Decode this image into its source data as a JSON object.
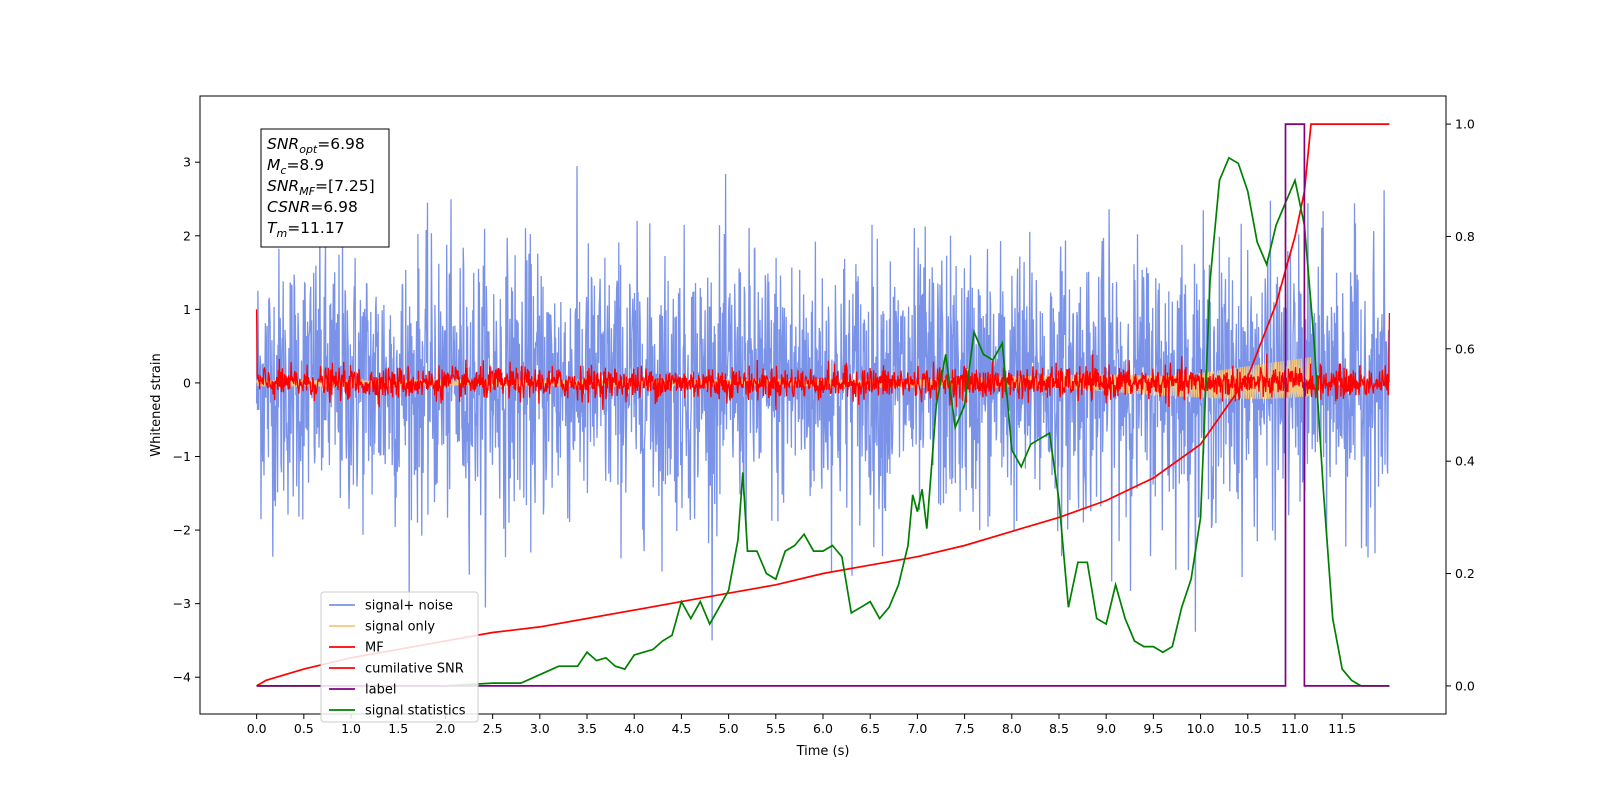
{
  "chart_data": {
    "type": "line",
    "xlabel": "Time (s)",
    "ylabel": "Whitened strain",
    "xlim": [
      -0.6,
      12.6
    ],
    "ylim": [
      -4.5,
      3.9
    ],
    "y2lim": [
      -0.05,
      1.05
    ],
    "x_ticks": [
      0.0,
      0.5,
      1.0,
      1.5,
      2.0,
      2.5,
      3.0,
      3.5,
      4.0,
      4.5,
      5.0,
      5.5,
      6.0,
      6.5,
      7.0,
      7.5,
      8.0,
      8.5,
      9.0,
      9.5,
      10.0,
      10.5,
      11.0,
      11.5
    ],
    "x_tick_labels": [
      "0.0",
      "0.5",
      "1.0",
      "1.5",
      "2.0",
      "2.5",
      "3.0",
      "3.5",
      "4.0",
      "4.5",
      "5.0",
      "5.5",
      "6.0",
      "6.5",
      "7.0",
      "7.5",
      "8.0",
      "8.5",
      "9.0",
      "9.5",
      "10.0",
      "10.5",
      "11.0",
      "11.5"
    ],
    "y_ticks": [
      -4,
      -3,
      -2,
      -1,
      0,
      1,
      2,
      3
    ],
    "y_tick_labels": [
      "−4",
      "−3",
      "−2",
      "−1",
      "0",
      "1",
      "2",
      "3"
    ],
    "y2_ticks": [
      0.0,
      0.2,
      0.4,
      0.6,
      0.8,
      1.0
    ],
    "y2_tick_labels": [
      "0.0",
      "0.2",
      "0.4",
      "0.6",
      "0.8",
      "1.0"
    ],
    "grid": false,
    "legend_placement": "lower-left",
    "annotation": [
      {
        "base": "SNR",
        "sub": "opt",
        "value": "=6.98"
      },
      {
        "base": "M",
        "sub": "c",
        "value": "=8.9"
      },
      {
        "base": "SNR",
        "sub": "MF",
        "value": "=[7.25]"
      },
      {
        "base": "CSNR",
        "sub": "",
        "value": "=6.98"
      },
      {
        "base": "T",
        "sub": "m",
        "value": "=11.17"
      }
    ],
    "series": [
      {
        "name": "signal+ noise",
        "color": "#7a93e8",
        "axis": "left",
        "kind": "noise",
        "x_range": [
          0,
          12.0
        ],
        "envelope": [
          -3.5,
          3.5
        ],
        "typical_std": 0.9
      },
      {
        "name": "signal only",
        "color": "#f5c77e",
        "axis": "left",
        "kind": "chirp",
        "x_range": [
          0,
          11.17
        ],
        "amplitude_start": 0.05,
        "amplitude_end": 0.35
      },
      {
        "name": "MF",
        "color": "#ff0000",
        "axis": "left",
        "kind": "noise",
        "x_range": [
          0,
          12.0
        ],
        "typical_std": 0.11
      },
      {
        "name": "cumilative SNR",
        "color": "#ff0000",
        "axis": "right",
        "x": [
          0,
          0.1,
          0.5,
          1,
          1.5,
          2,
          2.5,
          3,
          3.5,
          4,
          4.5,
          5,
          5.5,
          6,
          6.5,
          7,
          7.5,
          8,
          8.5,
          9,
          9.5,
          10,
          10.5,
          10.8,
          11,
          11.1,
          11.17,
          11.5,
          12.0
        ],
        "y": [
          0.0,
          0.01,
          0.03,
          0.05,
          0.065,
          0.08,
          0.095,
          0.105,
          0.12,
          0.135,
          0.15,
          0.165,
          0.18,
          0.2,
          0.215,
          0.23,
          0.25,
          0.275,
          0.3,
          0.33,
          0.37,
          0.43,
          0.55,
          0.68,
          0.8,
          0.88,
          1.0,
          1.0,
          1.0
        ]
      },
      {
        "name": "label",
        "color": "#800080",
        "axis": "right",
        "x": [
          0,
          10.9,
          10.9,
          11.1,
          11.1,
          12.0
        ],
        "y": [
          0,
          0,
          1,
          1,
          0,
          0
        ]
      },
      {
        "name": "signal statistics",
        "color": "#008000",
        "axis": "right",
        "x": [
          0,
          0.5,
          1,
          1.5,
          2,
          2.5,
          2.8,
          3,
          3.2,
          3.4,
          3.5,
          3.6,
          3.7,
          3.8,
          3.9,
          4.0,
          4.1,
          4.2,
          4.3,
          4.4,
          4.5,
          4.6,
          4.7,
          4.8,
          4.9,
          5.0,
          5.1,
          5.15,
          5.2,
          5.3,
          5.4,
          5.5,
          5.6,
          5.7,
          5.8,
          5.9,
          6.0,
          6.1,
          6.2,
          6.3,
          6.4,
          6.5,
          6.6,
          6.7,
          6.8,
          6.9,
          6.95,
          7.0,
          7.05,
          7.1,
          7.2,
          7.3,
          7.4,
          7.5,
          7.6,
          7.7,
          7.8,
          7.9,
          8.0,
          8.1,
          8.2,
          8.3,
          8.4,
          8.5,
          8.6,
          8.7,
          8.8,
          8.9,
          9.0,
          9.1,
          9.2,
          9.3,
          9.4,
          9.5,
          9.6,
          9.7,
          9.8,
          9.9,
          10.0,
          10.1,
          10.2,
          10.3,
          10.4,
          10.5,
          10.6,
          10.7,
          10.8,
          10.9,
          11.0,
          11.1,
          11.2,
          11.3,
          11.4,
          11.5,
          11.6,
          11.7,
          11.8,
          11.9,
          12.0
        ],
        "y": [
          0.0,
          0.0,
          0.0,
          0.0,
          0.0,
          0.005,
          0.005,
          0.02,
          0.035,
          0.035,
          0.06,
          0.045,
          0.05,
          0.035,
          0.03,
          0.055,
          0.06,
          0.065,
          0.08,
          0.09,
          0.15,
          0.12,
          0.15,
          0.11,
          0.14,
          0.17,
          0.26,
          0.38,
          0.24,
          0.24,
          0.2,
          0.19,
          0.24,
          0.25,
          0.27,
          0.24,
          0.24,
          0.25,
          0.23,
          0.13,
          0.14,
          0.15,
          0.12,
          0.14,
          0.18,
          0.25,
          0.34,
          0.31,
          0.35,
          0.28,
          0.5,
          0.59,
          0.46,
          0.5,
          0.63,
          0.59,
          0.58,
          0.61,
          0.42,
          0.39,
          0.43,
          0.44,
          0.45,
          0.33,
          0.14,
          0.22,
          0.22,
          0.12,
          0.11,
          0.18,
          0.12,
          0.08,
          0.07,
          0.07,
          0.06,
          0.07,
          0.14,
          0.19,
          0.3,
          0.72,
          0.9,
          0.94,
          0.93,
          0.88,
          0.79,
          0.75,
          0.82,
          0.86,
          0.9,
          0.82,
          0.62,
          0.35,
          0.12,
          0.03,
          0.01,
          0.0,
          0.0,
          0.0,
          0.0
        ]
      }
    ]
  }
}
